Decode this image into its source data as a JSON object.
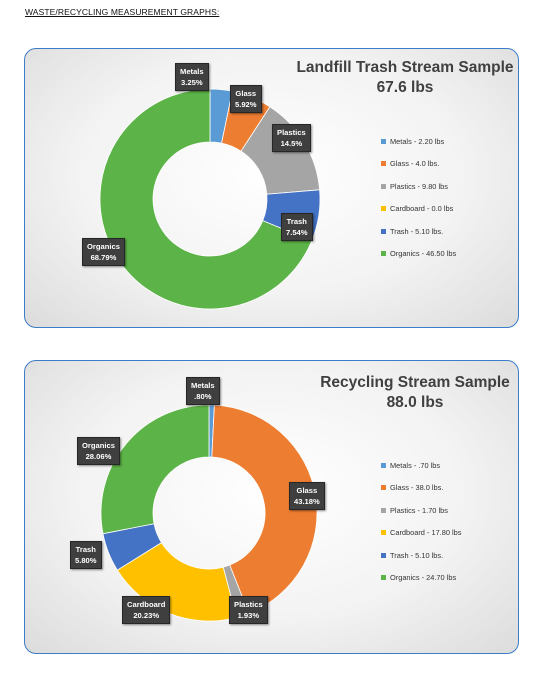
{
  "page": {
    "heading": "WASTE/RECYCLING MEASUREMENT GRAPHS:"
  },
  "chart_data": [
    {
      "type": "pie",
      "title": "Landfill Trash Stream Sample",
      "subtitle": "67.6 lbs",
      "categories": [
        "Metals",
        "Glass",
        "Plastics",
        "Cardboard",
        "Trash",
        "Organics"
      ],
      "values": [
        2.2,
        4.0,
        9.8,
        0.0,
        5.1,
        46.5
      ],
      "percents": [
        3.25,
        5.92,
        14.5,
        0,
        7.54,
        68.79
      ],
      "colors": [
        "#5b9bd5",
        "#ed7d31",
        "#a5a5a5",
        "#ffc000",
        "#4472c4",
        "#5cb347"
      ],
      "legend": [
        "Metals - 2.20 lbs",
        "Glass - 4.0 lbs.",
        "Plastics - 9.80 lbs",
        "Cardboard - 0.0 lbs",
        "Trash - 5.10 lbs.",
        "Organics - 46.50 lbs"
      ],
      "legend_position": "right",
      "labels": [
        {
          "name": "Metals",
          "value": "3.25%"
        },
        {
          "name": "Glass",
          "value": "5.92%"
        },
        {
          "name": "Plastics",
          "value": "14.5%"
        },
        {
          "name": "Trash",
          "value": "7.54%"
        },
        {
          "name": "Organics",
          "value": "68.79%"
        }
      ]
    },
    {
      "type": "pie",
      "title": "Recycling Stream Sample",
      "subtitle": "88.0 lbs",
      "categories": [
        "Metals",
        "Glass",
        "Plastics",
        "Cardboard",
        "Trash",
        "Organics"
      ],
      "values": [
        0.7,
        38.0,
        1.7,
        17.8,
        5.1,
        24.7
      ],
      "percents": [
        0.8,
        43.18,
        1.93,
        20.23,
        5.8,
        28.06
      ],
      "colors": [
        "#5b9bd5",
        "#ed7d31",
        "#a5a5a5",
        "#ffc000",
        "#4472c4",
        "#5cb347"
      ],
      "legend": [
        "Metals - .70 lbs",
        "Glass - 38.0 lbs.",
        "Plastics - 1.70 lbs",
        "Cardboard - 17.80 lbs",
        "Trash - 5.10 lbs.",
        "Organics - 24.70 lbs"
      ],
      "legend_position": "right",
      "labels": [
        {
          "name": "Metals",
          "value": ".80%"
        },
        {
          "name": "Glass",
          "value": "43.18%"
        },
        {
          "name": "Plastics",
          "value": "1.93%"
        },
        {
          "name": "Cardboard",
          "value": "20.23%"
        },
        {
          "name": "Trash",
          "value": "5.80%"
        },
        {
          "name": "Organics",
          "value": "28.06%"
        }
      ]
    }
  ]
}
